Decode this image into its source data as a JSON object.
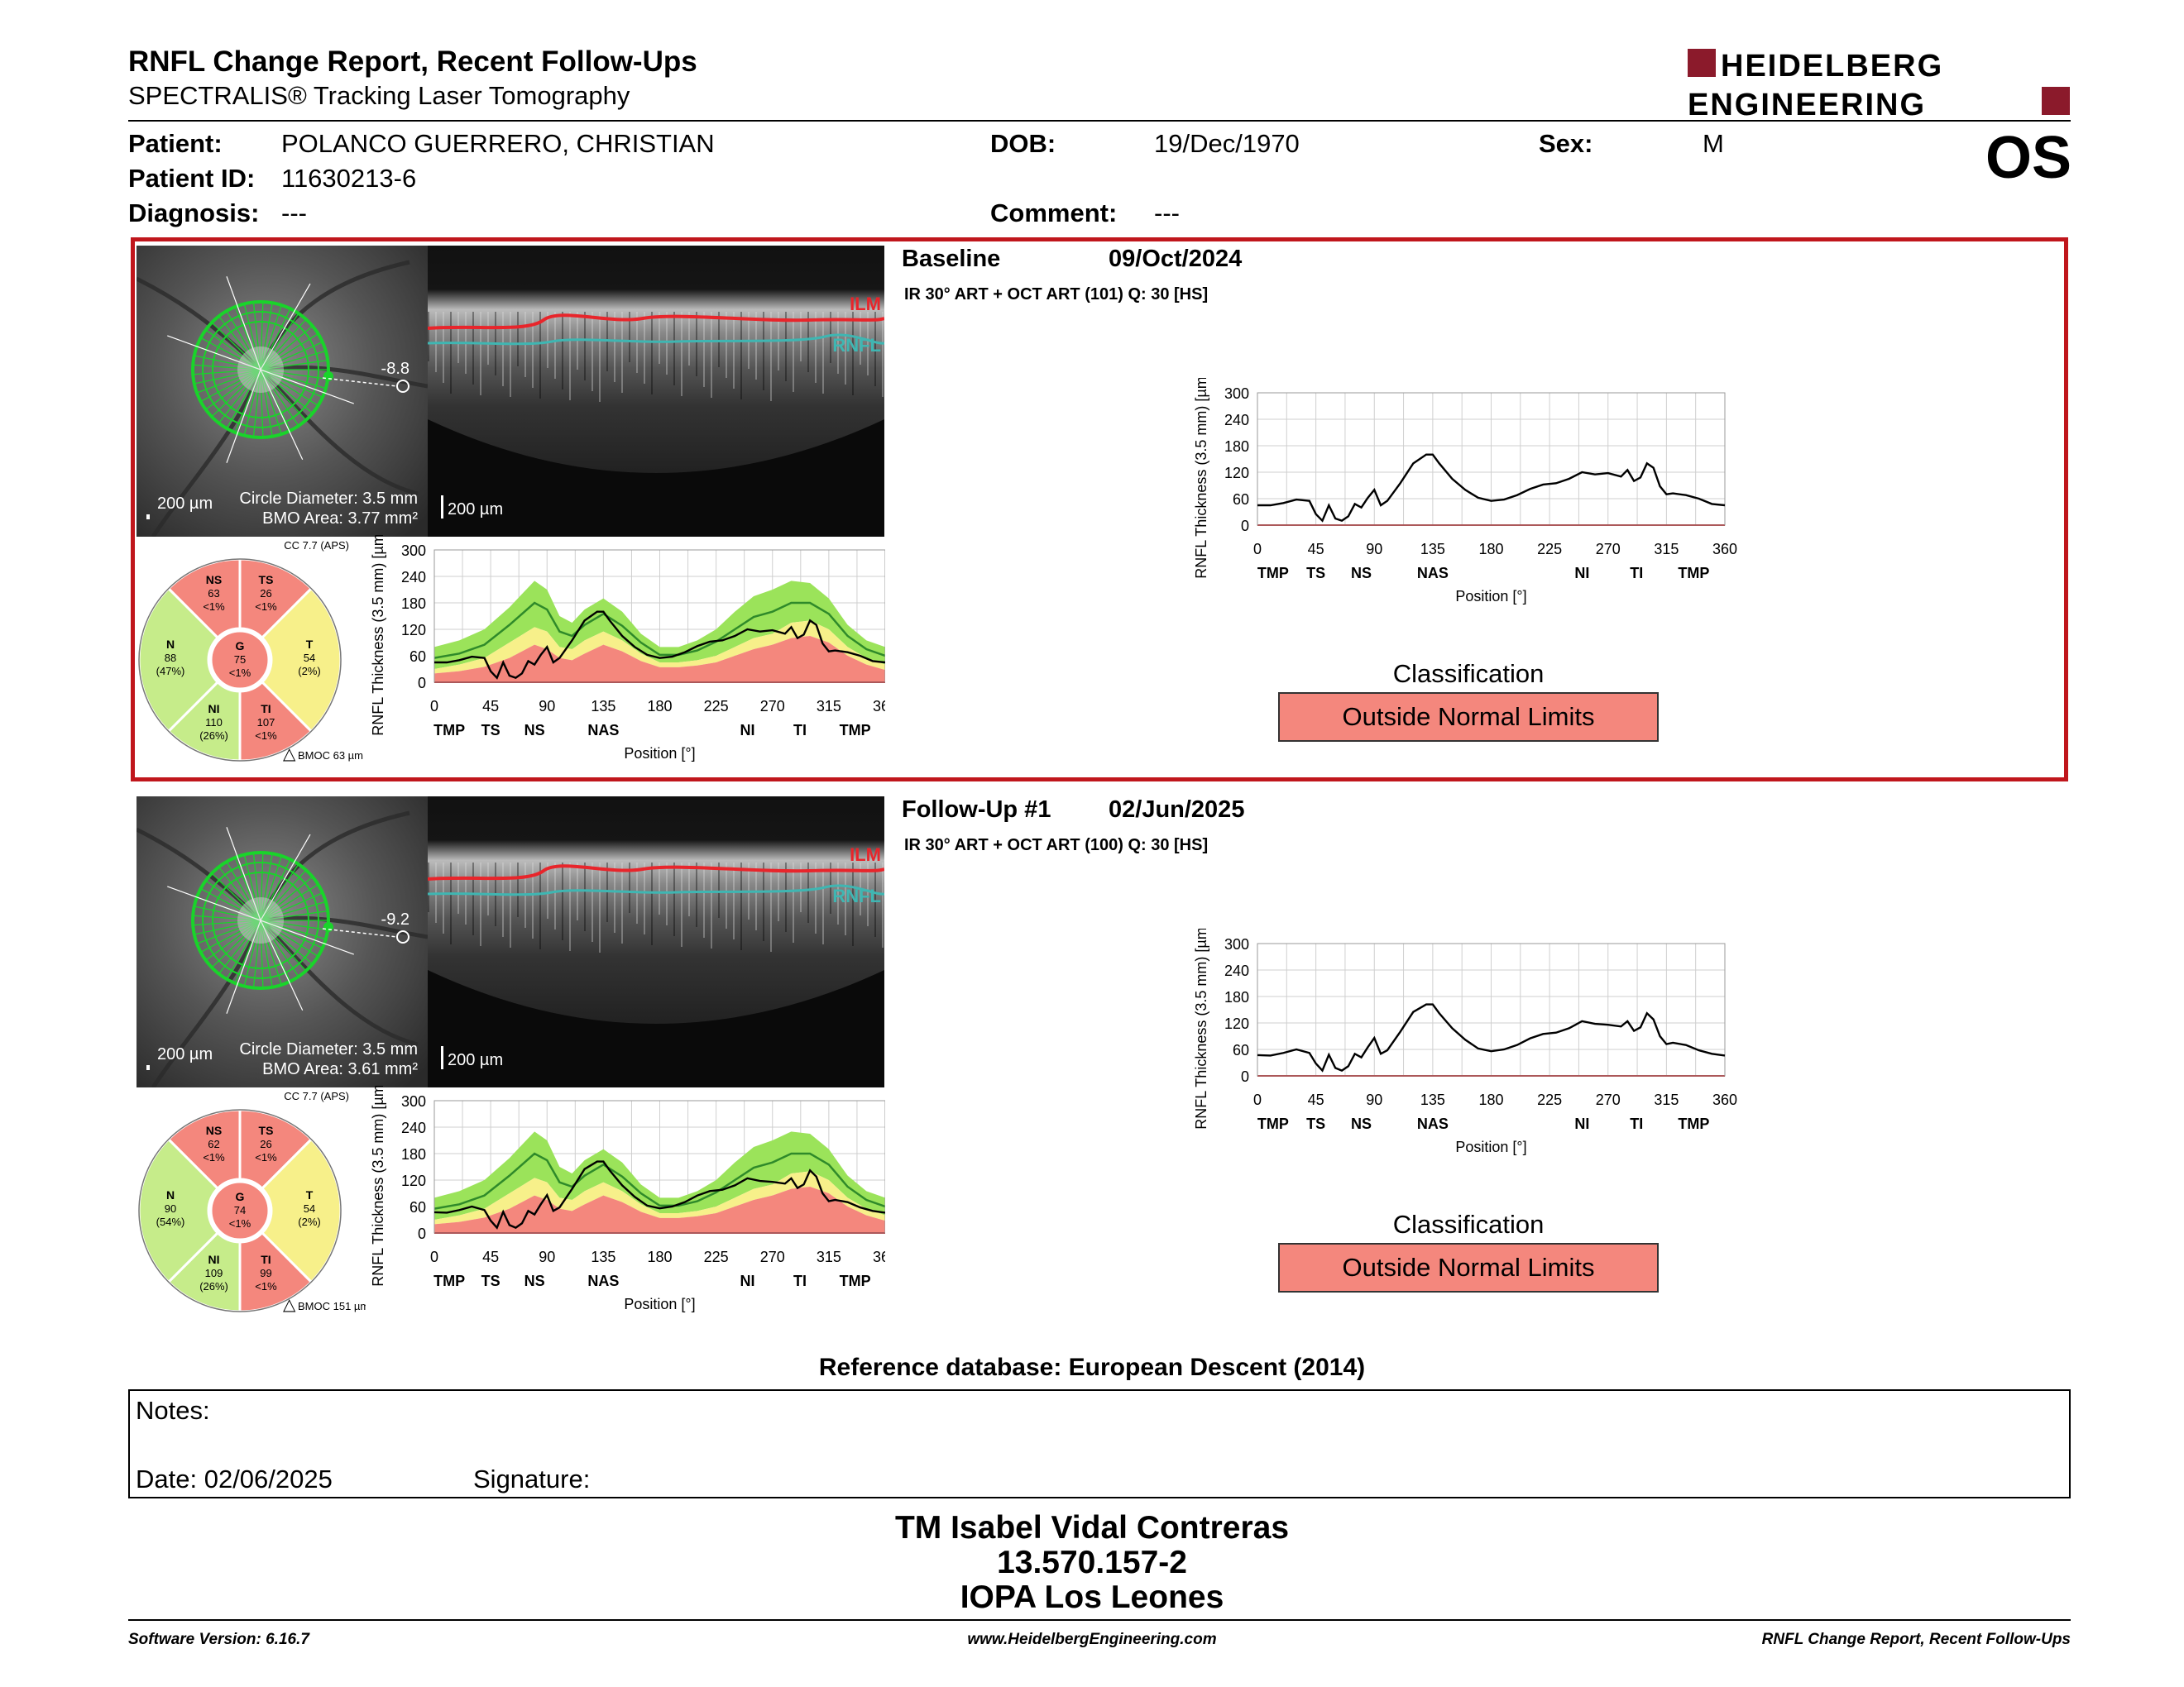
{
  "header": {
    "title": "RNFL Change Report, Recent Follow-Ups",
    "subtitle": "SPECTRALIS® Tracking Laser Tomography",
    "logo_line1": "HEIDELBERG",
    "logo_line2": "ENGINEERING",
    "eye": "OS"
  },
  "patient": {
    "patient_label": "Patient:",
    "patient_name": "POLANCO GUERRERO, CHRISTIAN",
    "id_label": "Patient ID:",
    "id": "11630213-6",
    "diagnosis_label": "Diagnosis:",
    "diagnosis": "---",
    "dob_label": "DOB:",
    "dob": "19/Dec/1970",
    "comment_label": "Comment:",
    "comment": "---",
    "sex_label": "Sex:",
    "sex": "M"
  },
  "visits": [
    {
      "name": "Baseline",
      "date": "09/Oct/2024",
      "meta": "IR 30° ART + OCT ART (101) Q: 30 [HS]",
      "angle": "-8.8",
      "circle_diameter": "Circle Diameter: 3.5 mm",
      "bmo_area": "BMO Area: 3.77 mm²",
      "scale_ir": "200 µm",
      "scale_oct": "200 µm",
      "ilm": "ILM",
      "rnfl": "RNFL",
      "cc": "CC 7.7 (APS)",
      "bmoc": "BMOC 63 µm",
      "classification_label": "Classification",
      "classification": "Outside Normal Limits",
      "sectors": {
        "NS": [
          "NS",
          "63",
          "<1%"
        ],
        "TS": [
          "TS",
          "26",
          "<1%"
        ],
        "N": [
          "N",
          "88",
          "(47%)"
        ],
        "G": [
          "G",
          "75",
          "<1%"
        ],
        "T": [
          "T",
          "54",
          "(2%)"
        ],
        "NI": [
          "NI",
          "110",
          "(26%)"
        ],
        "TI": [
          "TI",
          "107",
          "<1%"
        ]
      }
    },
    {
      "name": "Follow-Up #1",
      "date": "02/Jun/2025",
      "meta": "IR 30° ART + OCT ART (100) Q: 30 [HS]",
      "angle": "-9.2",
      "circle_diameter": "Circle Diameter: 3.5 mm",
      "bmo_area": "BMO Area: 3.61 mm²",
      "scale_ir": "200 µm",
      "scale_oct": "200 µm",
      "ilm": "ILM",
      "rnfl": "RNFL",
      "cc": "CC 7.7 (APS)",
      "bmoc": "BMOC 151 µm",
      "classification_label": "Classification",
      "classification": "Outside Normal Limits",
      "sectors": {
        "NS": [
          "NS",
          "62",
          "<1%"
        ],
        "TS": [
          "TS",
          "26",
          "<1%"
        ],
        "N": [
          "N",
          "90",
          "(54%)"
        ],
        "G": [
          "G",
          "74",
          "<1%"
        ],
        "T": [
          "T",
          "54",
          "(2%)"
        ],
        "NI": [
          "NI",
          "109",
          "(26%)"
        ],
        "TI": [
          "TI",
          "99",
          "<1%"
        ]
      }
    }
  ],
  "colors": {
    "outside": "#f4877d",
    "borderline": "#f7f08a",
    "normal": "#c6ec8a",
    "green_band": "#9be35a",
    "frame_red": "#c0161c"
  },
  "chart_data": {
    "type": "line",
    "xlabel": "Position [°]",
    "ylabel": "RNFL Thickness (3.5 mm) [µm]",
    "xlim": [
      0,
      360
    ],
    "ylim": [
      0,
      300
    ],
    "x_ticks": [
      "0",
      "45",
      "90",
      "135",
      "180",
      "225",
      "270",
      "315",
      "360"
    ],
    "y_ticks": [
      "0",
      "60",
      "120",
      "180",
      "240",
      "300"
    ],
    "sector_labels": [
      "TMP",
      "TS",
      "NS",
      "NAS",
      "NI",
      "TI",
      "TMP"
    ],
    "x": [
      0,
      10,
      20,
      30,
      40,
      45,
      50,
      55,
      60,
      65,
      70,
      75,
      80,
      85,
      90,
      95,
      100,
      110,
      120,
      130,
      135,
      140,
      150,
      160,
      170,
      180,
      190,
      200,
      210,
      220,
      230,
      240,
      250,
      260,
      270,
      280,
      285,
      290,
      295,
      300,
      305,
      310,
      315,
      320,
      330,
      340,
      350,
      360
    ],
    "series": [
      {
        "values": [
          45,
          45,
          50,
          58,
          55,
          25,
          10,
          45,
          15,
          10,
          20,
          48,
          40,
          62,
          80,
          45,
          55,
          95,
          140,
          160,
          160,
          140,
          105,
          80,
          62,
          55,
          58,
          68,
          82,
          92,
          95,
          105,
          120,
          115,
          118,
          110,
          125,
          100,
          108,
          140,
          130,
          88,
          70,
          72,
          68,
          60,
          48,
          45
        ]
      },
      {
        "values": [
          47,
          46,
          52,
          60,
          52,
          28,
          12,
          48,
          18,
          12,
          22,
          50,
          42,
          65,
          86,
          50,
          58,
          100,
          145,
          162,
          162,
          142,
          108,
          82,
          62,
          56,
          60,
          70,
          85,
          95,
          98,
          108,
          124,
          118,
          116,
          112,
          124,
          102,
          110,
          142,
          128,
          90,
          72,
          75,
          70,
          58,
          50,
          46
        ]
      }
    ],
    "normal_band": {
      "x": [
        0,
        20,
        40,
        60,
        80,
        90,
        100,
        110,
        120,
        135,
        150,
        165,
        180,
        195,
        210,
        225,
        240,
        255,
        270,
        285,
        300,
        315,
        330,
        345,
        360
      ],
      "p5": [
        30,
        40,
        55,
        90,
        125,
        115,
        80,
        75,
        95,
        115,
        95,
        65,
        45,
        45,
        50,
        60,
        80,
        100,
        110,
        135,
        140,
        120,
        80,
        55,
        40
      ],
      "p95": [
        80,
        95,
        120,
        170,
        230,
        210,
        150,
        135,
        165,
        190,
        160,
        110,
        80,
        80,
        95,
        120,
        160,
        195,
        210,
        230,
        225,
        190,
        130,
        95,
        80
      ],
      "mean": [
        55,
        65,
        85,
        130,
        180,
        165,
        115,
        105,
        130,
        155,
        128,
        90,
        62,
        62,
        72,
        92,
        120,
        148,
        160,
        180,
        180,
        155,
        105,
        75,
        60
      ],
      "border_low": [
        20,
        25,
        35,
        55,
        85,
        75,
        55,
        50,
        65,
        85,
        70,
        48,
        34,
        34,
        38,
        45,
        60,
        75,
        85,
        100,
        105,
        90,
        60,
        40,
        28
      ],
      "outside_low": [
        12,
        15,
        25,
        40,
        60,
        55,
        40,
        38,
        50,
        65,
        52,
        36,
        25,
        25,
        28,
        34,
        45,
        55,
        62,
        75,
        78,
        68,
        45,
        30,
        20
      ]
    }
  },
  "reference_database": "Reference database: European Descent (2014)",
  "notes": {
    "notes_label": "Notes:",
    "date_text": "Date: 02/06/2025",
    "signature_label": "Signature:"
  },
  "signature_block": {
    "name": "TM Isabel Vidal Contreras",
    "rut": "13.570.157-2",
    "clinic": "IOPA Los Leones"
  },
  "footer": {
    "software": "Software Version: 6.16.7",
    "website": "www.HeidelbergEngineering.com",
    "report_name": "RNFL Change Report, Recent Follow-Ups"
  }
}
